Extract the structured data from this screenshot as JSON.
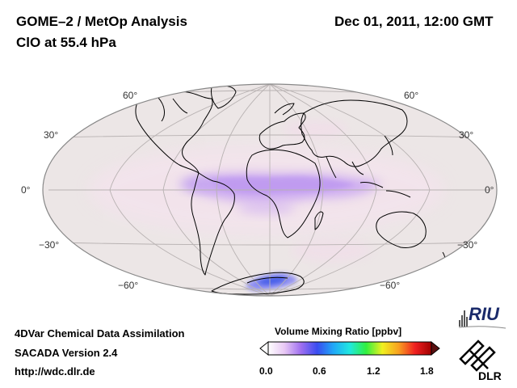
{
  "header": {
    "title_line1": "GOME–2 / MetOp Analysis",
    "title_line2": "ClO at 55.4 hPa",
    "datetime": "Dec 01, 2011, 12:00 GMT"
  },
  "map": {
    "projection": "Hammer-Aitoff (global)",
    "lat_labels": {
      "n60_left": "60°",
      "n30_left": "30°",
      "eq_left": "0°",
      "s30_left": "−30°",
      "s60_left": "−60°",
      "n60_right": "60°",
      "n30_right": "30°",
      "eq_right": "0°",
      "s30_right": "−30°",
      "s60_right": "−60°"
    },
    "colors": {
      "ocean_background": "#ece6e6",
      "low_value": "#f4e4ee",
      "band": "#c9a6f2",
      "band_core": "#b48cf0",
      "antarctic_high": "#6e7cf2",
      "antarctic_core": "#3a56e8"
    }
  },
  "colorbar": {
    "title": "Volume Mixing Ratio [ppbv]",
    "ticks": [
      "0.0",
      "0.6",
      "1.2",
      "1.8"
    ],
    "gradient": [
      "#ffffff",
      "#e8c8f4",
      "#a070f0",
      "#3a4cf0",
      "#20a8f8",
      "#20e8e0",
      "#30f040",
      "#f0f020",
      "#f8a020",
      "#f02020",
      "#a00000"
    ]
  },
  "footer": {
    "line1": "4DVar Chemical Data Assimilation",
    "line2": "SACADA Version 2.4",
    "line3": "http://wdc.dlr.de"
  },
  "logos": {
    "riu_text": "RIU",
    "dlr_text": "DLR"
  }
}
